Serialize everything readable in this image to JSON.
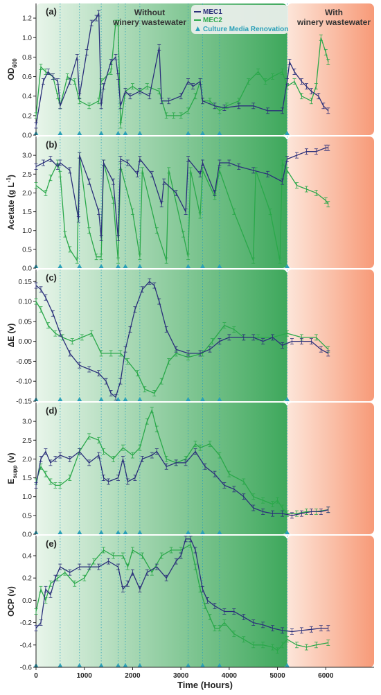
{
  "colors": {
    "mec1": "#2a2f7a",
    "mec2": "#2aa84a",
    "renovation": "#2aa0b8",
    "without_bg": "#3aa85a",
    "with_bg": "#f4a080"
  },
  "chart_data": {
    "type": "line",
    "xlabel": "Time (Hours)",
    "xlim": [
      0,
      7000
    ],
    "xticks": [
      0,
      1000,
      2000,
      3000,
      4000,
      5000,
      6000
    ],
    "regions": [
      {
        "label_line1": "Without",
        "label_line2": "winery wastewater",
        "start": 0,
        "end": 5200
      },
      {
        "label_line1": "With",
        "label_line2": "winery wastewater",
        "start": 5200,
        "end": 7000
      }
    ],
    "legend": {
      "mec1": "MEC1",
      "mec2": "MEC2",
      "renovation": "Culture Media Renovation"
    },
    "renovations": [
      0,
      500,
      900,
      1350,
      1700,
      1850,
      2150,
      3150,
      3450,
      3800,
      5200
    ],
    "panels": [
      {
        "id": "a",
        "label": "(a)",
        "ylabel": "OD",
        "ylabel_sub": "600",
        "ylim": [
          0,
          1.35
        ],
        "yticks": [
          "0.0",
          "0.2",
          "0.4",
          "0.6",
          "0.8",
          "1.0",
          "1.2"
        ],
        "ytick_values": [
          0,
          0.2,
          0.4,
          0.6,
          0.8,
          1.0,
          1.2
        ],
        "series": [
          {
            "name": "MEC1",
            "x": [
              0,
              150,
              250,
              350,
              450,
              500,
              700,
              850,
              900,
              1050,
              1150,
              1250,
              1300,
              1350,
              1400,
              1550,
              1650,
              1700,
              1750,
              1850,
              1950,
              2150,
              2350,
              2550,
              2600,
              2750,
              3000,
              3150,
              3250,
              3400,
              3450,
              3700,
              3900,
              4200,
              4500,
              4800,
              5100,
              5200,
              5250,
              5350,
              5500,
              5600,
              5700,
              5850,
              5950,
              6050
            ],
            "y": [
              0.1,
              0.55,
              0.65,
              0.6,
              0.55,
              0.3,
              0.55,
              0.8,
              0.4,
              0.85,
              1.15,
              1.2,
              1.25,
              0.3,
              0.5,
              0.75,
              0.8,
              0.6,
              0.3,
              0.45,
              0.4,
              0.45,
              0.4,
              0.9,
              0.35,
              0.35,
              0.4,
              0.55,
              0.5,
              0.55,
              0.35,
              0.3,
              0.28,
              0.3,
              0.3,
              0.25,
              0.25,
              0.55,
              0.75,
              0.65,
              0.55,
              0.5,
              0.45,
              0.4,
              0.3,
              0.25
            ]
          },
          {
            "name": "MEC2",
            "x": [
              0,
              100,
              200,
              350,
              450,
              500,
              650,
              800,
              900,
              1100,
              1300,
              1350,
              1550,
              1650,
              1700,
              1750,
              1850,
              2000,
              2150,
              2300,
              2550,
              2700,
              2850,
              3000,
              3150,
              3300,
              3400,
              3450,
              3600,
              3800,
              3950,
              4200,
              4400,
              4600,
              4750,
              4900,
              5100,
              5200,
              5350,
              5500,
              5700,
              5800,
              5900,
              6000,
              6050
            ],
            "y": [
              0.2,
              0.7,
              0.65,
              0.6,
              0.4,
              0.3,
              0.6,
              0.55,
              0.35,
              0.3,
              0.35,
              0.55,
              0.65,
              1.15,
              1.15,
              0.1,
              0.45,
              0.5,
              0.45,
              0.5,
              0.45,
              0.2,
              0.2,
              0.2,
              0.25,
              0.4,
              0.55,
              0.35,
              0.35,
              0.25,
              0.3,
              0.35,
              0.55,
              0.65,
              0.55,
              0.6,
              0.65,
              0.5,
              0.55,
              0.4,
              0.35,
              0.5,
              1.0,
              0.85,
              0.75
            ]
          }
        ]
      },
      {
        "id": "b",
        "label": "(b)",
        "ylabel": "Acetate (g L",
        "ylabel_sup": "-1",
        "ylabel_end": ")",
        "ylim": [
          0,
          3.5
        ],
        "yticks": [
          "0.0",
          "0.5",
          "1.0",
          "1.5",
          "2.0",
          "2.5",
          "3.0"
        ],
        "ytick_values": [
          0,
          0.5,
          1.0,
          1.5,
          2.0,
          2.5,
          3.0
        ],
        "series": [
          {
            "name": "MEC1",
            "x": [
              0,
              150,
              300,
              450,
              500,
              700,
              880,
              900,
              1100,
              1300,
              1350,
              1400,
              1600,
              1700,
              1750,
              1900,
              2100,
              2150,
              2400,
              2600,
              2650,
              2900,
              3100,
              3150,
              3400,
              3450,
              3700,
              3800,
              4000,
              4200,
              4500,
              4800,
              5100,
              5200,
              5400,
              5600,
              5800,
              6000,
              6050
            ],
            "y": [
              2.7,
              2.8,
              2.9,
              2.7,
              2.8,
              2.6,
              1.3,
              3.0,
              2.3,
              1.5,
              0.8,
              2.8,
              2.3,
              0.8,
              2.9,
              2.8,
              2.5,
              2.9,
              2.5,
              1.7,
              2.3,
              2.0,
              1.5,
              2.9,
              2.5,
              2.8,
              2.0,
              2.8,
              2.8,
              2.7,
              2.6,
              2.5,
              2.3,
              2.9,
              3.0,
              3.1,
              3.1,
              3.2,
              3.2
            ]
          },
          {
            "name": "MEC2",
            "x": [
              0,
              200,
              300,
              450,
              500,
              600,
              700,
              850,
              900,
              1100,
              1250,
              1350,
              1400,
              1600,
              1700,
              1750,
              2000,
              2150,
              2200,
              2500,
              2700,
              2750,
              3050,
              3150,
              3200,
              3400,
              3450,
              3700,
              3800,
              4100,
              4500,
              4550,
              4850,
              5050,
              5100,
              5200,
              5400,
              5600,
              5800,
              6000,
              6050
            ],
            "y": [
              2.2,
              2.0,
              2.4,
              2.8,
              2.5,
              0.9,
              0.5,
              0.2,
              3.0,
              1.0,
              0.3,
              0.3,
              2.8,
              1.8,
              0.2,
              2.7,
              1.5,
              0.3,
              2.6,
              1.0,
              0.2,
              2.6,
              0.9,
              0.3,
              2.6,
              1.4,
              2.6,
              1.9,
              2.6,
              1.5,
              0.2,
              2.6,
              1.5,
              0.2,
              2.8,
              2.6,
              2.2,
              2.1,
              2.0,
              1.8,
              1.7
            ]
          }
        ]
      },
      {
        "id": "c",
        "label": "(c)",
        "ylabel": "ΔE (v)",
        "ylim": [
          -0.15,
          0.18
        ],
        "yticks": [
          "-0.15",
          "-0.10",
          "-0.05",
          "0.00",
          "0.05",
          "0.10",
          "0.15"
        ],
        "ytick_values": [
          -0.15,
          -0.1,
          -0.05,
          0.0,
          0.05,
          0.1,
          0.15
        ],
        "series": [
          {
            "name": "MEC1",
            "x": [
              0,
              100,
              200,
              350,
              500,
              700,
              900,
              1100,
              1300,
              1450,
              1550,
              1650,
              1750,
              1850,
              1950,
              2050,
              2200,
              2350,
              2450,
              2550,
              2700,
              2900,
              3150,
              3400,
              3600,
              3800,
              4000,
              4300,
              4500,
              4700,
              4900,
              5100,
              5300,
              5500,
              5700,
              5900,
              6050
            ],
            "y": [
              0.14,
              0.13,
              0.11,
              0.07,
              0.02,
              -0.03,
              -0.06,
              -0.07,
              -0.08,
              -0.1,
              -0.13,
              -0.14,
              -0.1,
              -0.02,
              0.03,
              0.08,
              0.13,
              0.15,
              0.14,
              0.1,
              0.03,
              -0.02,
              -0.03,
              -0.03,
              -0.02,
              0.0,
              0.01,
              0.01,
              0.01,
              0.0,
              0.01,
              -0.01,
              0.0,
              0.0,
              0.0,
              -0.02,
              -0.03
            ]
          },
          {
            "name": "MEC2",
            "x": [
              0,
              100,
              250,
              400,
              550,
              750,
              950,
              1150,
              1350,
              1550,
              1750,
              1900,
              2100,
              2250,
              2450,
              2600,
              2750,
              2900,
              3150,
              3450,
              3650,
              3900,
              4100,
              4300,
              4600,
              4900,
              5200,
              5500,
              5800,
              6050
            ],
            "y": [
              0.1,
              0.08,
              0.04,
              0.02,
              0.01,
              0.0,
              0.01,
              0.02,
              -0.03,
              -0.03,
              -0.03,
              -0.05,
              -0.08,
              -0.12,
              -0.13,
              -0.1,
              -0.05,
              -0.03,
              -0.04,
              -0.03,
              0.0,
              0.04,
              0.03,
              0.01,
              0.01,
              0.01,
              0.02,
              0.01,
              0.01,
              -0.02
            ]
          }
        ]
      },
      {
        "id": "d",
        "label": "(d)",
        "ylabel": "E",
        "ylabel_sub": "supp",
        "ylabel_end": " (v)",
        "ylim": [
          0,
          3.5
        ],
        "yticks": [
          "0.0",
          "0.5",
          "1.0",
          "1.5",
          "2.0",
          "2.5",
          "3.0"
        ],
        "ytick_values": [
          0,
          0.5,
          1.0,
          1.5,
          2.0,
          2.5,
          3.0
        ],
        "series": [
          {
            "name": "MEC1",
            "x": [
              0,
              100,
              200,
              300,
              400,
              500,
              700,
              900,
              1100,
              1300,
              1400,
              1500,
              1700,
              1800,
              1900,
              2050,
              2200,
              2400,
              2500,
              2700,
              2900,
              3100,
              3300,
              3500,
              3700,
              3900,
              4100,
              4300,
              4500,
              4700,
              4900,
              5100,
              5300,
              5500,
              5700,
              5900,
              6050
            ],
            "y": [
              1.3,
              2.0,
              2.2,
              1.9,
              2.0,
              2.1,
              2.0,
              2.2,
              1.9,
              2.1,
              1.5,
              1.4,
              1.5,
              2.0,
              1.4,
              1.5,
              2.0,
              2.1,
              2.2,
              1.8,
              1.9,
              1.9,
              2.2,
              1.8,
              1.6,
              1.3,
              1.2,
              1.0,
              0.7,
              0.6,
              0.55,
              0.55,
              0.5,
              0.55,
              0.6,
              0.6,
              0.65
            ]
          },
          {
            "name": "MEC2",
            "x": [
              0,
              100,
              200,
              300,
              400,
              500,
              700,
              900,
              1100,
              1300,
              1400,
              1600,
              1800,
              2000,
              2150,
              2300,
              2400,
              2500,
              2700,
              2900,
              3100,
              3300,
              3400,
              3600,
              3800,
              4000,
              4300,
              4500,
              4700,
              4900,
              5000,
              5100,
              5200,
              5400,
              5600,
              5800,
              6050
            ],
            "y": [
              1.4,
              1.8,
              1.6,
              1.4,
              1.3,
              1.3,
              1.5,
              2.2,
              2.6,
              2.5,
              2.2,
              2.0,
              2.3,
              2.1,
              2.3,
              3.0,
              3.3,
              2.8,
              2.0,
              1.9,
              2.0,
              2.4,
              2.3,
              2.4,
              2.1,
              1.6,
              1.4,
              1.0,
              0.9,
              0.8,
              0.9,
              0.7,
              0.55,
              0.55,
              0.6,
              0.6,
              0.65
            ]
          }
        ]
      },
      {
        "id": "e",
        "label": "(e)",
        "ylabel": "OCP (v)",
        "ylim": [
          -0.6,
          0.58
        ],
        "yticks": [
          "-0.6",
          "-0.4",
          "-0.2",
          "0.0",
          "0.2",
          "0.4"
        ],
        "ytick_values": [
          -0.6,
          -0.4,
          -0.2,
          0.0,
          0.2,
          0.4
        ],
        "series": [
          {
            "name": "MEC1",
            "x": [
              0,
              100,
              200,
              300,
              400,
              500,
              700,
              900,
              1100,
              1300,
              1500,
              1700,
              1800,
              1900,
              2000,
              2150,
              2300,
              2500,
              2700,
              2900,
              3000,
              3100,
              3200,
              3300,
              3450,
              3550,
              3700,
              3900,
              4100,
              4300,
              4500,
              4700,
              4900,
              5100,
              5300,
              5500,
              5700,
              5900,
              6050
            ],
            "y": [
              -0.25,
              -0.2,
              0.1,
              0.05,
              0.2,
              0.3,
              0.25,
              0.3,
              0.3,
              0.3,
              0.35,
              0.3,
              0.1,
              0.15,
              0.25,
              0.1,
              0.25,
              0.3,
              0.2,
              0.35,
              0.4,
              0.55,
              0.55,
              0.45,
              0.1,
              0.0,
              -0.05,
              -0.1,
              -0.1,
              -0.15,
              -0.2,
              -0.22,
              -0.25,
              -0.27,
              -0.28,
              -0.27,
              -0.26,
              -0.25,
              -0.25
            ]
          },
          {
            "name": "MEC2",
            "x": [
              0,
              100,
              200,
              300,
              450,
              600,
              800,
              1000,
              1200,
              1400,
              1600,
              1800,
              1900,
              2000,
              2200,
              2400,
              2600,
              2800,
              3000,
              3200,
              3300,
              3400,
              3500,
              3600,
              3700,
              3800,
              3900,
              4100,
              4300,
              4500,
              4700,
              4900,
              5000,
              5100,
              5200,
              5400,
              5600,
              5800,
              6050
            ],
            "y": [
              -0.1,
              0.1,
              0.0,
              0.15,
              0.2,
              0.25,
              0.15,
              0.2,
              0.35,
              0.45,
              0.4,
              0.4,
              0.3,
              0.45,
              0.4,
              0.25,
              0.4,
              0.45,
              0.45,
              0.5,
              0.3,
              0.1,
              -0.05,
              -0.15,
              -0.25,
              -0.25,
              -0.2,
              -0.3,
              -0.35,
              -0.4,
              -0.4,
              -0.42,
              -0.45,
              -0.4,
              -0.35,
              -0.4,
              -0.42,
              -0.4,
              -0.38
            ]
          }
        ]
      }
    ]
  }
}
